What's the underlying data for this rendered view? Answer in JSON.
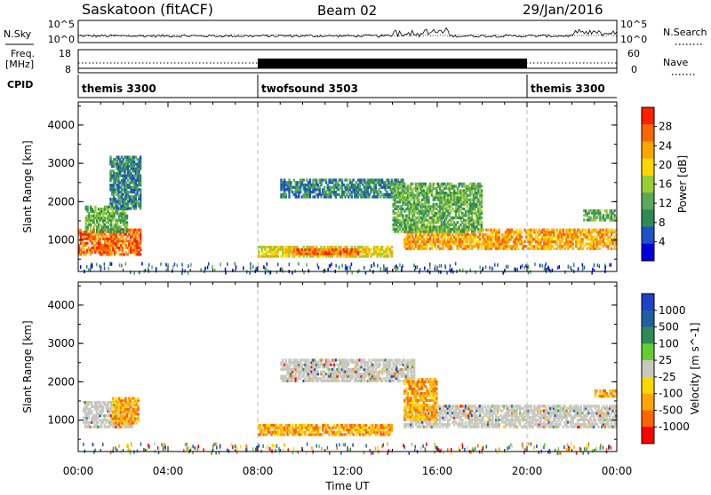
{
  "header": {
    "station": "Saskatoon (fitACF)",
    "beam": "Beam 02",
    "date": "29/Jan/2016"
  },
  "left_labels": {
    "nsky": "N.Sky",
    "freq": "Freq.",
    "freq_unit": "[MHz]",
    "cpid": "CPID"
  },
  "right_labels": {
    "nsearch": "N.Search",
    "nave": "Nave"
  },
  "noise_panel": {
    "left_ticks": [
      "10^5",
      "10^0"
    ],
    "right_ticks": [
      "10^5",
      "10^0"
    ]
  },
  "freq_panel": {
    "left_ticks": [
      "18",
      "8"
    ],
    "right_ticks": [
      "60",
      "0"
    ]
  },
  "cpid_segments": [
    {
      "label": "themis 3300",
      "start": 0,
      "end": 8
    },
    {
      "label": "twofsound 3503",
      "start": 8,
      "end": 20
    },
    {
      "label": "themis 3300",
      "start": 20,
      "end": 24
    }
  ],
  "colors": {
    "power_scale": [
      "#0000dd",
      "#1e50c8",
      "#2e8b57",
      "#5aa85a",
      "#9acd32",
      "#ffd700",
      "#ffa500",
      "#ff6600",
      "#ff2000"
    ],
    "velocity_scale": [
      "#1e40c8",
      "#2060a0",
      "#2e8b57",
      "#66cc33",
      "#c8c8c0",
      "#ffd700",
      "#ffa500",
      "#ff6600",
      "#ff0000"
    ],
    "ground_scatter": "#c8c8c0"
  },
  "chart_data": [
    {
      "type": "heatmap",
      "title": "",
      "ylabel": "Slant Range [km]",
      "xlabel": "",
      "ylim": [
        180,
        4600
      ],
      "xlim": [
        0,
        24
      ],
      "yticks": [
        "1000",
        "2000",
        "3000",
        "4000"
      ],
      "colorbar": {
        "label": "Power [dB]",
        "ticks": [
          "4",
          "8",
          "12",
          "16",
          "20",
          "24",
          "28"
        ],
        "range": [
          0,
          32
        ]
      },
      "regions": [
        {
          "t0": 0.0,
          "t1": 2.8,
          "r0": 600,
          "r1": 1300,
          "level": 7
        },
        {
          "t0": 0.3,
          "t1": 2.2,
          "r0": 1200,
          "r1": 1900,
          "level": 3
        },
        {
          "t0": 1.4,
          "t1": 2.8,
          "r0": 1800,
          "r1": 3200,
          "level": 2
        },
        {
          "t0": 8.0,
          "t1": 14.0,
          "r0": 550,
          "r1": 850,
          "level": 5
        },
        {
          "t0": 9.5,
          "t1": 12.5,
          "r0": 620,
          "r1": 780,
          "level": 7
        },
        {
          "t0": 9.0,
          "t1": 14.5,
          "r0": 2100,
          "r1": 2600,
          "level": 2
        },
        {
          "t0": 14.5,
          "t1": 24.0,
          "r0": 750,
          "r1": 1300,
          "level": 6
        },
        {
          "t0": 14.0,
          "t1": 18.0,
          "r0": 1200,
          "r1": 2500,
          "level": 3
        },
        {
          "t0": 22.5,
          "t1": 24.0,
          "r0": 1500,
          "r1": 1800,
          "level": 3
        }
      ]
    },
    {
      "type": "heatmap",
      "title": "",
      "ylabel": "Slant Range [km]",
      "xlabel": "Time UT",
      "ylim": [
        180,
        4600
      ],
      "xlim": [
        0,
        24
      ],
      "yticks": [
        "1000",
        "2000",
        "3000",
        "4000"
      ],
      "xticks": [
        "00:00",
        "04:00",
        "08:00",
        "12:00",
        "16:00",
        "20:00",
        "00:00"
      ],
      "colorbar": {
        "label": "Velocity [m s^-1]",
        "ticks": [
          "1000",
          "500",
          "100",
          "25",
          "-25",
          "-100",
          "-500",
          "-1000"
        ]
      },
      "regions": [
        {
          "t0": 0.2,
          "t1": 2.5,
          "r0": 800,
          "r1": 1500,
          "level": 4
        },
        {
          "t0": 1.5,
          "t1": 2.7,
          "r0": 900,
          "r1": 1600,
          "level": 6
        },
        {
          "t0": 8.0,
          "t1": 14.0,
          "r0": 600,
          "r1": 900,
          "level": 6
        },
        {
          "t0": 9.0,
          "t1": 15.0,
          "r0": 2000,
          "r1": 2600,
          "level": 4
        },
        {
          "t0": 14.5,
          "t1": 24.0,
          "r0": 800,
          "r1": 1400,
          "level": 4
        },
        {
          "t0": 14.5,
          "t1": 16.0,
          "r0": 1000,
          "r1": 2100,
          "level": 6
        },
        {
          "t0": 23.0,
          "t1": 24.0,
          "r0": 1600,
          "r1": 1800,
          "level": 6
        }
      ]
    }
  ]
}
